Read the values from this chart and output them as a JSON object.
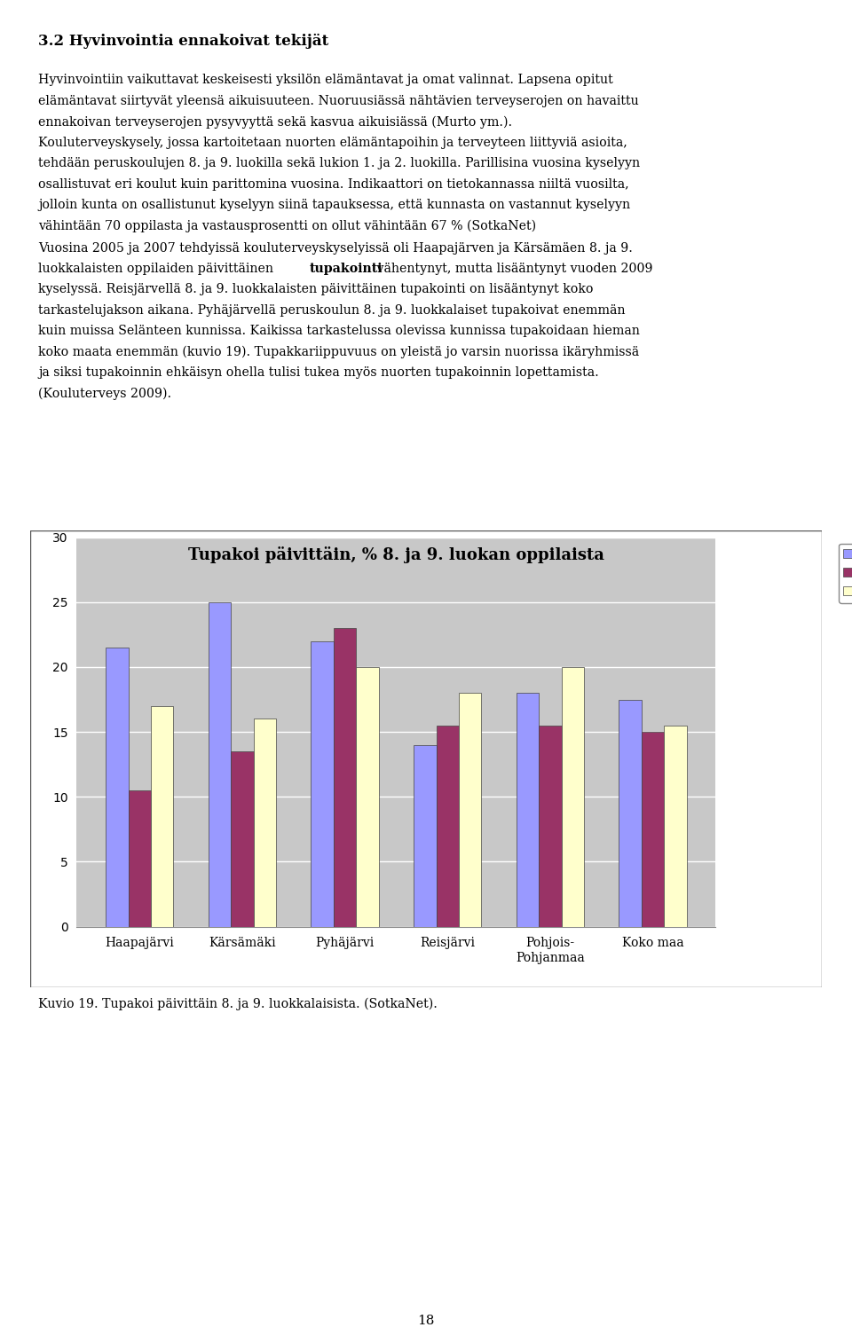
{
  "title": "Tupakoi päivittäin, % 8. ja 9. luokan oppilaista",
  "categories": [
    "Haapajärvi",
    "Kärsämäki",
    "Pyhäjärvi",
    "Reisjärvi",
    "Pohjois-\nPohjanmaa",
    "Koko maa"
  ],
  "series": {
    "2005": [
      21.5,
      25.0,
      22.0,
      14.0,
      18.0,
      17.5
    ],
    "2007": [
      10.5,
      13.5,
      23.0,
      15.5,
      15.5,
      15.0
    ],
    "2009": [
      17.0,
      16.0,
      20.0,
      18.0,
      20.0,
      15.5
    ]
  },
  "colors": {
    "2005": "#9999FF",
    "2007": "#993366",
    "2009": "#FFFFCC"
  },
  "ylim": [
    0,
    30
  ],
  "yticks": [
    0,
    5,
    10,
    15,
    20,
    25,
    30
  ],
  "plot_area_bg": "#C8C8C8",
  "grid_color": "#FFFFFF",
  "title_fontsize": 13,
  "tick_fontsize": 10,
  "legend_fontsize": 10,
  "page_number": "18",
  "heading": "3.2 Hyvinvointia ennakoivat tekijät",
  "caption": "Kuvio 19. Tupakoi päivittäin 8. ja 9. luokkalaisista. (SotkaNet)."
}
